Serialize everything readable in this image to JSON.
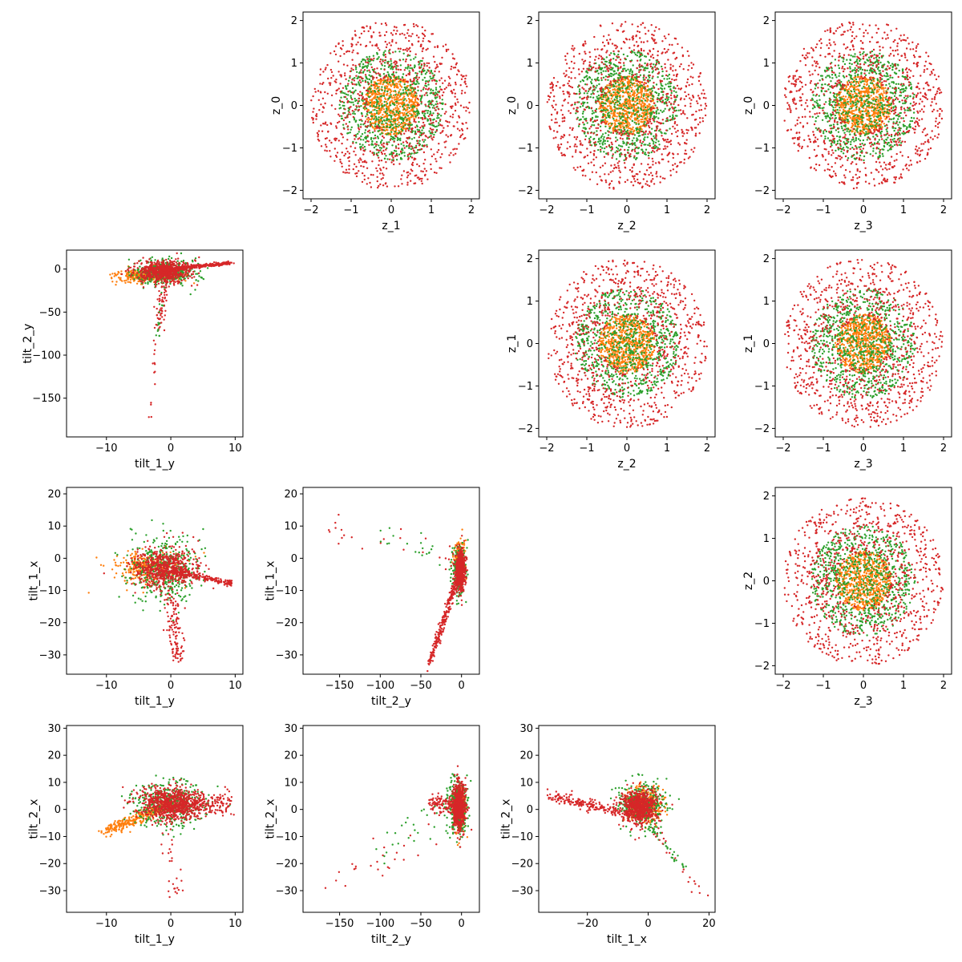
{
  "figure": {
    "series_colors": [
      "#ff7f0e",
      "#2ca02c",
      "#d62728"
    ]
  },
  "chart_data": [
    {
      "type": "scatter",
      "row": 0,
      "col": 1,
      "xlabel": "z_1",
      "ylabel": "z_0",
      "xlim": [
        -2.2,
        2.2
      ],
      "ylim": [
        -2.2,
        2.2
      ],
      "xticks": [
        -2,
        -1,
        0,
        1,
        2
      ],
      "yticks": [
        -2,
        -1,
        0,
        1,
        2
      ],
      "grid": false,
      "clouds": [
        {
          "shape": "disc",
          "center": [
            0,
            0
          ],
          "r_in": 0,
          "r_out": 0.7,
          "n": 700,
          "color": "#ff7f0e"
        },
        {
          "shape": "disc",
          "center": [
            0,
            0
          ],
          "r_in": 0,
          "r_out": 1.3,
          "n": 800,
          "color": "#2ca02c"
        },
        {
          "shape": "disc",
          "center": [
            0,
            0
          ],
          "r_in": 0.6,
          "r_out": 2.0,
          "n": 900,
          "color": "#d62728"
        }
      ]
    },
    {
      "type": "scatter",
      "row": 0,
      "col": 2,
      "xlabel": "z_2",
      "ylabel": "z_0",
      "xlim": [
        -2.2,
        2.2
      ],
      "ylim": [
        -2.2,
        2.2
      ],
      "xticks": [
        -2,
        -1,
        0,
        1,
        2
      ],
      "yticks": [
        -2,
        -1,
        0,
        1,
        2
      ],
      "grid": false,
      "clouds": [
        {
          "shape": "disc",
          "center": [
            0,
            0
          ],
          "r_in": 0,
          "r_out": 0.7,
          "n": 700,
          "color": "#ff7f0e"
        },
        {
          "shape": "disc",
          "center": [
            0,
            0
          ],
          "r_in": 0,
          "r_out": 1.3,
          "n": 800,
          "color": "#2ca02c"
        },
        {
          "shape": "disc",
          "center": [
            0,
            0
          ],
          "r_in": 0.6,
          "r_out": 2.0,
          "n": 900,
          "color": "#d62728"
        }
      ]
    },
    {
      "type": "scatter",
      "row": 0,
      "col": 3,
      "xlabel": "z_3",
      "ylabel": "z_0",
      "xlim": [
        -2.2,
        2.2
      ],
      "ylim": [
        -2.2,
        2.2
      ],
      "xticks": [
        -2,
        -1,
        0,
        1,
        2
      ],
      "yticks": [
        -2,
        -1,
        0,
        1,
        2
      ],
      "grid": false,
      "clouds": [
        {
          "shape": "disc",
          "center": [
            0,
            0
          ],
          "r_in": 0,
          "r_out": 0.7,
          "n": 700,
          "color": "#ff7f0e"
        },
        {
          "shape": "disc",
          "center": [
            0,
            0
          ],
          "r_in": 0,
          "r_out": 1.3,
          "n": 800,
          "color": "#2ca02c"
        },
        {
          "shape": "disc",
          "center": [
            0,
            0
          ],
          "r_in": 0.6,
          "r_out": 2.0,
          "n": 900,
          "color": "#d62728"
        }
      ]
    },
    {
      "type": "scatter",
      "row": 1,
      "col": 0,
      "xlabel": "tilt_1_y",
      "ylabel": "tilt_2_y",
      "xlim": [
        -16.2,
        11.2
      ],
      "ylim": [
        -195,
        22
      ],
      "xticks": [
        -10,
        0,
        10
      ],
      "yticks": [
        -150,
        -100,
        -50,
        0
      ],
      "grid": false,
      "clouds": [
        {
          "shape": "gauss",
          "center": [
            -4,
            -8
          ],
          "sd": [
            2.5,
            4
          ],
          "n": 300,
          "color": "#ff7f0e"
        },
        {
          "shape": "gauss",
          "center": [
            -1,
            -5
          ],
          "sd": [
            2.5,
            8
          ],
          "n": 400,
          "color": "#2ca02c"
        },
        {
          "shape": "gauss",
          "center": [
            -1,
            -3
          ],
          "sd": [
            2,
            6
          ],
          "n": 700,
          "color": "#d62728"
        },
        {
          "shape": "segment",
          "from": [
            0,
            0
          ],
          "to": [
            9.5,
            7
          ],
          "spread": [
            0.5,
            2
          ],
          "n": 250,
          "color": "#d62728"
        },
        {
          "shape": "segment",
          "from": [
            -1,
            -20
          ],
          "to": [
            -2,
            -70
          ],
          "spread": [
            0.8,
            5
          ],
          "n": 60,
          "color": "#d62728"
        },
        {
          "shape": "segment",
          "from": [
            -2,
            -70
          ],
          "to": [
            -3.5,
            -185
          ],
          "spread": [
            0.4,
            4
          ],
          "n": 14,
          "color": "#d62728"
        },
        {
          "shape": "segment",
          "from": [
            -1.5,
            -40
          ],
          "to": [
            -2,
            -95
          ],
          "spread": [
            0.4,
            3
          ],
          "n": 12,
          "color": "#2ca02c"
        }
      ]
    },
    {
      "type": "scatter",
      "row": 1,
      "col": 2,
      "xlabel": "z_2",
      "ylabel": "z_1",
      "xlim": [
        -2.2,
        2.2
      ],
      "ylim": [
        -2.2,
        2.2
      ],
      "xticks": [
        -2,
        -1,
        0,
        1,
        2
      ],
      "yticks": [
        -2,
        -1,
        0,
        1,
        2
      ],
      "grid": false,
      "clouds": [
        {
          "shape": "disc",
          "center": [
            0,
            0
          ],
          "r_in": 0,
          "r_out": 0.7,
          "n": 700,
          "color": "#ff7f0e"
        },
        {
          "shape": "disc",
          "center": [
            0,
            0
          ],
          "r_in": 0,
          "r_out": 1.3,
          "n": 800,
          "color": "#2ca02c"
        },
        {
          "shape": "disc",
          "center": [
            0,
            0
          ],
          "r_in": 0.6,
          "r_out": 2.0,
          "n": 900,
          "color": "#d62728"
        }
      ]
    },
    {
      "type": "scatter",
      "row": 1,
      "col": 3,
      "xlabel": "z_3",
      "ylabel": "z_1",
      "xlim": [
        -2.2,
        2.2
      ],
      "ylim": [
        -2.2,
        2.2
      ],
      "xticks": [
        -2,
        -1,
        0,
        1,
        2
      ],
      "yticks": [
        -2,
        -1,
        0,
        1,
        2
      ],
      "grid": false,
      "clouds": [
        {
          "shape": "disc",
          "center": [
            0,
            0
          ],
          "r_in": 0,
          "r_out": 0.7,
          "n": 700,
          "color": "#ff7f0e"
        },
        {
          "shape": "disc",
          "center": [
            0,
            0
          ],
          "r_in": 0,
          "r_out": 1.3,
          "n": 800,
          "color": "#2ca02c"
        },
        {
          "shape": "disc",
          "center": [
            0,
            0
          ],
          "r_in": 0.6,
          "r_out": 2.0,
          "n": 900,
          "color": "#d62728"
        }
      ]
    },
    {
      "type": "scatter",
      "row": 2,
      "col": 0,
      "xlabel": "tilt_1_y",
      "ylabel": "tilt_1_x",
      "xlim": [
        -16.2,
        11.2
      ],
      "ylim": [
        -36,
        22
      ],
      "xticks": [
        -10,
        0,
        10
      ],
      "yticks": [
        -30,
        -20,
        -10,
        0,
        10,
        20
      ],
      "grid": false,
      "clouds": [
        {
          "shape": "gauss",
          "center": [
            -4,
            -3
          ],
          "sd": [
            2.5,
            2.5
          ],
          "n": 300,
          "color": "#ff7f0e"
        },
        {
          "shape": "gauss",
          "center": [
            -1,
            -4
          ],
          "sd": [
            2.5,
            5
          ],
          "n": 400,
          "color": "#2ca02c"
        },
        {
          "shape": "gauss",
          "center": [
            -1,
            -3
          ],
          "sd": [
            2.5,
            3
          ],
          "n": 600,
          "color": "#d62728"
        },
        {
          "shape": "segment",
          "from": [
            0,
            -4
          ],
          "to": [
            9.5,
            -8
          ],
          "spread": [
            0.5,
            1
          ],
          "n": 200,
          "color": "#d62728"
        },
        {
          "shape": "segment",
          "from": [
            0,
            -10
          ],
          "to": [
            1,
            -32
          ],
          "spread": [
            1.5,
            2
          ],
          "n": 120,
          "color": "#d62728"
        }
      ]
    },
    {
      "type": "scatter",
      "row": 2,
      "col": 1,
      "xlabel": "tilt_2_y",
      "ylabel": "tilt_1_x",
      "xlim": [
        -195,
        22
      ],
      "ylim": [
        -36,
        22
      ],
      "xticks": [
        -150,
        -100,
        -50,
        0
      ],
      "yticks": [
        -30,
        -20,
        -10,
        0,
        10,
        20
      ],
      "grid": false,
      "clouds": [
        {
          "shape": "gauss",
          "center": [
            -2,
            0
          ],
          "sd": [
            3,
            2.5
          ],
          "n": 250,
          "color": "#ff7f0e"
        },
        {
          "shape": "gauss",
          "center": [
            -3,
            -4
          ],
          "sd": [
            4,
            3.5
          ],
          "n": 300,
          "color": "#2ca02c"
        },
        {
          "shape": "gauss",
          "center": [
            -1,
            -4
          ],
          "sd": [
            3,
            3
          ],
          "n": 600,
          "color": "#d62728"
        },
        {
          "shape": "segment",
          "from": [
            -3,
            -5
          ],
          "to": [
            -40,
            -33
          ],
          "spread": [
            3,
            1.5
          ],
          "n": 250,
          "color": "#d62728"
        },
        {
          "shape": "segment",
          "from": [
            -10,
            0
          ],
          "to": [
            -170,
            10
          ],
          "spread": [
            10,
            5
          ],
          "n": 25,
          "color": "#d62728"
        },
        {
          "shape": "segment",
          "from": [
            -10,
            0
          ],
          "to": [
            -100,
            8
          ],
          "spread": [
            10,
            5
          ],
          "n": 20,
          "color": "#2ca02c"
        }
      ]
    },
    {
      "type": "scatter",
      "row": 2,
      "col": 3,
      "xlabel": "z_3",
      "ylabel": "z_2",
      "xlim": [
        -2.2,
        2.2
      ],
      "ylim": [
        -2.2,
        2.2
      ],
      "xticks": [
        -2,
        -1,
        0,
        1,
        2
      ],
      "yticks": [
        -2,
        -1,
        0,
        1,
        2
      ],
      "grid": false,
      "clouds": [
        {
          "shape": "disc",
          "center": [
            0,
            0
          ],
          "r_in": 0,
          "r_out": 0.7,
          "n": 700,
          "color": "#ff7f0e"
        },
        {
          "shape": "disc",
          "center": [
            0,
            0
          ],
          "r_in": 0,
          "r_out": 1.3,
          "n": 800,
          "color": "#2ca02c"
        },
        {
          "shape": "disc",
          "center": [
            0,
            0
          ],
          "r_in": 0.6,
          "r_out": 2.0,
          "n": 900,
          "color": "#d62728"
        }
      ]
    },
    {
      "type": "scatter",
      "row": 3,
      "col": 0,
      "xlabel": "tilt_1_y",
      "ylabel": "tilt_2_x",
      "xlim": [
        -16.2,
        11.2
      ],
      "ylim": [
        -38,
        31
      ],
      "xticks": [
        -10,
        0,
        10
      ],
      "yticks": [
        -30,
        -20,
        -10,
        0,
        10,
        20,
        30
      ],
      "grid": false,
      "clouds": [
        {
          "shape": "segment",
          "from": [
            -10,
            -8
          ],
          "to": [
            0,
            2
          ],
          "spread": [
            1,
            2
          ],
          "n": 300,
          "color": "#ff7f0e"
        },
        {
          "shape": "gauss",
          "center": [
            0,
            2
          ],
          "sd": [
            3,
            4
          ],
          "n": 400,
          "color": "#2ca02c"
        },
        {
          "shape": "gauss",
          "center": [
            0,
            2
          ],
          "sd": [
            2.5,
            3
          ],
          "n": 700,
          "color": "#d62728"
        },
        {
          "shape": "segment",
          "from": [
            0,
            2
          ],
          "to": [
            9,
            2
          ],
          "spread": [
            1,
            5
          ],
          "n": 200,
          "color": "#d62728"
        },
        {
          "shape": "segment",
          "from": [
            -1,
            -5
          ],
          "to": [
            1,
            -34
          ],
          "spread": [
            1.5,
            3
          ],
          "n": 30,
          "color": "#d62728"
        }
      ]
    },
    {
      "type": "scatter",
      "row": 3,
      "col": 1,
      "xlabel": "tilt_2_y",
      "ylabel": "tilt_2_x",
      "xlim": [
        -195,
        22
      ],
      "ylim": [
        -38,
        31
      ],
      "xticks": [
        -150,
        -100,
        -50,
        0
      ],
      "yticks": [
        -30,
        -20,
        -10,
        0,
        10,
        20,
        30
      ],
      "grid": false,
      "clouds": [
        {
          "shape": "gauss",
          "center": [
            -3,
            1
          ],
          "sd": [
            4,
            3.5
          ],
          "n": 300,
          "color": "#ff7f0e"
        },
        {
          "shape": "gauss",
          "center": [
            -5,
            1
          ],
          "sd": [
            6,
            5
          ],
          "n": 350,
          "color": "#2ca02c"
        },
        {
          "shape": "gauss",
          "center": [
            -3,
            1
          ],
          "sd": [
            4,
            4
          ],
          "n": 700,
          "color": "#d62728"
        },
        {
          "shape": "segment",
          "from": [
            -40,
            2
          ],
          "to": [
            -5,
            2
          ],
          "spread": [
            3,
            3
          ],
          "n": 120,
          "color": "#d62728"
        },
        {
          "shape": "segment",
          "from": [
            -30,
            -10
          ],
          "to": [
            -160,
            -25
          ],
          "spread": [
            15,
            8
          ],
          "n": 25,
          "color": "#d62728"
        },
        {
          "shape": "segment",
          "from": [
            -20,
            0
          ],
          "to": [
            -110,
            -15
          ],
          "spread": [
            12,
            8
          ],
          "n": 25,
          "color": "#2ca02c"
        }
      ]
    },
    {
      "type": "scatter",
      "row": 3,
      "col": 2,
      "xlabel": "tilt_1_x",
      "ylabel": "tilt_2_x",
      "xlim": [
        -36,
        22
      ],
      "ylim": [
        -38,
        31
      ],
      "xticks": [
        -20,
        0,
        20
      ],
      "yticks": [
        -30,
        -20,
        -10,
        0,
        10,
        20,
        30
      ],
      "grid": false,
      "clouds": [
        {
          "shape": "gauss",
          "center": [
            -1,
            2
          ],
          "sd": [
            3,
            3.5
          ],
          "n": 300,
          "color": "#ff7f0e"
        },
        {
          "shape": "gauss",
          "center": [
            -2,
            2
          ],
          "sd": [
            4,
            4
          ],
          "n": 350,
          "color": "#2ca02c"
        },
        {
          "shape": "gauss",
          "center": [
            -3,
            1
          ],
          "sd": [
            3,
            3
          ],
          "n": 700,
          "color": "#d62728"
        },
        {
          "shape": "segment",
          "from": [
            -33,
            5
          ],
          "to": [
            -5,
            -2
          ],
          "spread": [
            1,
            2
          ],
          "n": 200,
          "color": "#d62728"
        },
        {
          "shape": "segment",
          "from": [
            0,
            -5
          ],
          "to": [
            12,
            -22
          ],
          "spread": [
            1.5,
            2
          ],
          "n": 40,
          "color": "#2ca02c"
        },
        {
          "shape": "segment",
          "from": [
            0,
            -5
          ],
          "to": [
            19,
            -34
          ],
          "spread": [
            1.5,
            2
          ],
          "n": 20,
          "color": "#d62728"
        }
      ]
    }
  ]
}
